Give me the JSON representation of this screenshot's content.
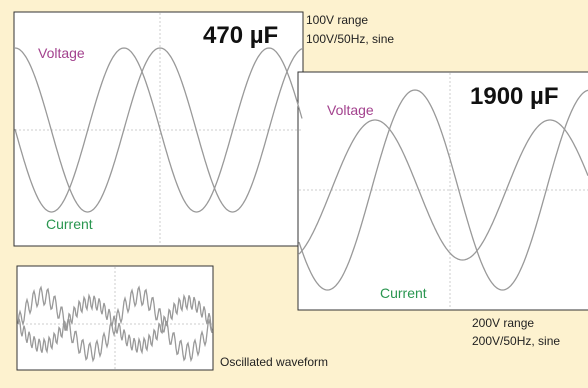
{
  "panels": [
    {
      "capacitance": "470 µF",
      "voltage_label": "Voltage",
      "current_label": "Current",
      "range": "100V range",
      "setting": "100V/50Hz, sine"
    },
    {
      "capacitance": "1900 µF",
      "voltage_label": "Voltage",
      "current_label": "Current",
      "range": "200V range",
      "setting": "200V/50Hz, sine"
    }
  ],
  "inset": {
    "caption": "Oscillated waveform"
  }
}
